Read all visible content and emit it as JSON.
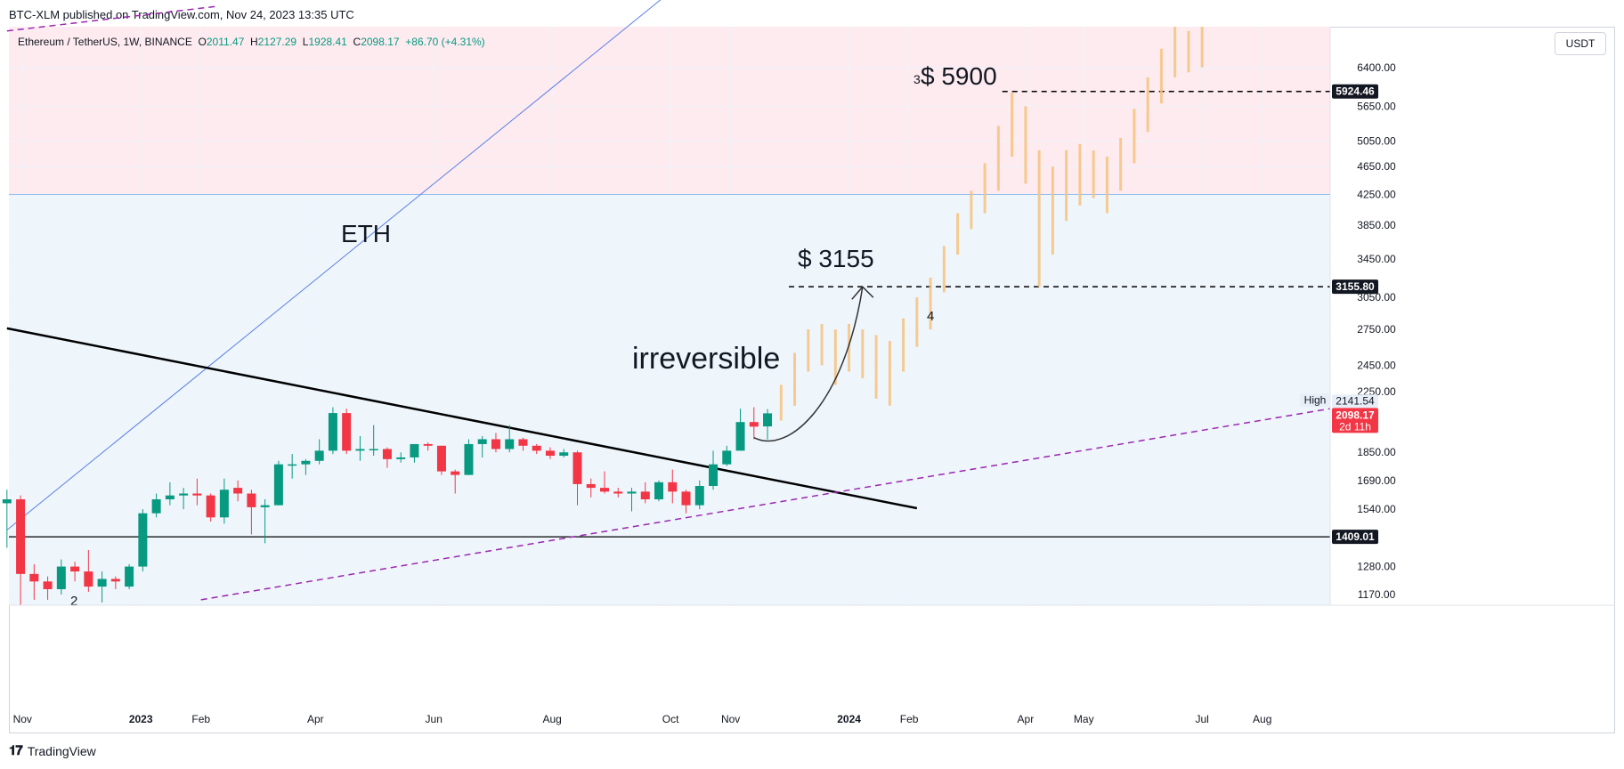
{
  "header": {
    "publisher": "BTC-XLM published on TradingView.com, Nov 24, 2023 13:35 UTC"
  },
  "legend": {
    "symbol": "Ethereum / TetherUS, 1W, BINANCE",
    "open_label": "O",
    "open": "2011.47",
    "high_label": "H",
    "high": "2127.29",
    "low_label": "L",
    "low": "1928.41",
    "close_label": "C",
    "close": "2098.17",
    "change": "+86.70 (+4.31%)"
  },
  "currency": "USDT",
  "footer": {
    "brand": "TradingView"
  },
  "annotations": {
    "eth": "ETH",
    "irreversible": "irreversible",
    "target1": "$ 3155",
    "target2": "$ 5900",
    "wave2": "2",
    "wave3": "3",
    "wave4": "4"
  },
  "price_labels": {
    "level_5924": "5924.46",
    "level_3155": "3155.80",
    "level_1409": "1409.01",
    "high_tag": "High",
    "high_value": "2141.54",
    "last_price": "2098.17",
    "countdown": "2d 11h"
  },
  "colors": {
    "bull": "#089981",
    "bear": "#f23645",
    "projection": "#f7c27f",
    "pink_zone": "#fdebef",
    "blue_zone": "#eef6fc",
    "trendline": "#000000",
    "diagonal": "#5b7fe8",
    "channel": "#9c27b0"
  },
  "chart_data": {
    "type": "candlestick",
    "title": "Ethereum / TetherUS, 1W, BINANCE",
    "y_scale": "log",
    "ylim": [
      1130,
      7300
    ],
    "y_ticks": [
      6400,
      5650,
      5050,
      4650,
      4250,
      3850,
      3450,
      3050,
      2750,
      2450,
      2250,
      1850,
      1690,
      1540,
      1280,
      1170
    ],
    "x_ticks": [
      "Nov",
      "2023",
      "Feb",
      "Apr",
      "Jun",
      "Aug",
      "Oct",
      "Nov",
      "2024",
      "Feb",
      "Apr",
      "May",
      "Jul",
      "Aug"
    ],
    "x_tick_dates": [
      "2022-11-01",
      "2023-01-01",
      "2023-02-01",
      "2023-04-01",
      "2023-06-01",
      "2023-08-01",
      "2023-10-01",
      "2023-11-01",
      "2024-01-01",
      "2024-02-01",
      "2024-04-01",
      "2024-05-01",
      "2024-07-01",
      "2024-08-01"
    ],
    "x_range": [
      "2022-10-25",
      "2024-09-05"
    ],
    "candles": [
      {
        "t": "2022-10-24",
        "o": 1570,
        "h": 1640,
        "l": 1360,
        "c": 1590
      },
      {
        "t": "2022-10-31",
        "o": 1590,
        "h": 1610,
        "l": 1080,
        "c": 1250
      },
      {
        "t": "2022-11-07",
        "o": 1250,
        "h": 1290,
        "l": 1150,
        "c": 1220
      },
      {
        "t": "2022-11-14",
        "o": 1220,
        "h": 1240,
        "l": 1150,
        "c": 1190
      },
      {
        "t": "2022-11-21",
        "o": 1190,
        "h": 1310,
        "l": 1170,
        "c": 1280
      },
      {
        "t": "2022-11-28",
        "o": 1280,
        "h": 1300,
        "l": 1220,
        "c": 1260
      },
      {
        "t": "2022-12-05",
        "o": 1260,
        "h": 1350,
        "l": 1180,
        "c": 1200
      },
      {
        "t": "2022-12-12",
        "o": 1200,
        "h": 1260,
        "l": 1140,
        "c": 1230
      },
      {
        "t": "2022-12-19",
        "o": 1230,
        "h": 1240,
        "l": 1190,
        "c": 1220
      },
      {
        "t": "2022-12-26",
        "o": 1200,
        "h": 1290,
        "l": 1190,
        "c": 1280
      },
      {
        "t": "2023-01-02",
        "o": 1280,
        "h": 1540,
        "l": 1260,
        "c": 1520
      },
      {
        "t": "2023-01-09",
        "o": 1520,
        "h": 1620,
        "l": 1500,
        "c": 1590
      },
      {
        "t": "2023-01-16",
        "o": 1590,
        "h": 1680,
        "l": 1560,
        "c": 1610
      },
      {
        "t": "2023-01-23",
        "o": 1610,
        "h": 1650,
        "l": 1540,
        "c": 1620
      },
      {
        "t": "2023-01-30",
        "o": 1620,
        "h": 1700,
        "l": 1560,
        "c": 1610
      },
      {
        "t": "2023-02-06",
        "o": 1610,
        "h": 1620,
        "l": 1480,
        "c": 1500
      },
      {
        "t": "2023-02-13",
        "o": 1500,
        "h": 1700,
        "l": 1470,
        "c": 1640
      },
      {
        "t": "2023-02-20",
        "o": 1650,
        "h": 1690,
        "l": 1580,
        "c": 1620
      },
      {
        "t": "2023-02-27",
        "o": 1620,
        "h": 1640,
        "l": 1420,
        "c": 1550
      },
      {
        "t": "2023-03-06",
        "o": 1550,
        "h": 1590,
        "l": 1380,
        "c": 1560
      },
      {
        "t": "2023-03-13",
        "o": 1560,
        "h": 1800,
        "l": 1560,
        "c": 1780
      },
      {
        "t": "2023-03-20",
        "o": 1780,
        "h": 1840,
        "l": 1700,
        "c": 1780
      },
      {
        "t": "2023-03-27",
        "o": 1780,
        "h": 1810,
        "l": 1720,
        "c": 1800
      },
      {
        "t": "2023-04-03",
        "o": 1800,
        "h": 1930,
        "l": 1780,
        "c": 1860
      },
      {
        "t": "2023-04-10",
        "o": 1860,
        "h": 2140,
        "l": 1840,
        "c": 2100
      },
      {
        "t": "2023-04-17",
        "o": 2100,
        "h": 2130,
        "l": 1840,
        "c": 1860
      },
      {
        "t": "2023-04-24",
        "o": 1860,
        "h": 1950,
        "l": 1800,
        "c": 1870
      },
      {
        "t": "2023-05-01",
        "o": 1870,
        "h": 2020,
        "l": 1830,
        "c": 1870
      },
      {
        "t": "2023-05-08",
        "o": 1870,
        "h": 1880,
        "l": 1760,
        "c": 1810
      },
      {
        "t": "2023-05-15",
        "o": 1810,
        "h": 1850,
        "l": 1790,
        "c": 1820
      },
      {
        "t": "2023-05-22",
        "o": 1820,
        "h": 1900,
        "l": 1790,
        "c": 1900
      },
      {
        "t": "2023-05-29",
        "o": 1900,
        "h": 1910,
        "l": 1860,
        "c": 1890
      },
      {
        "t": "2023-06-05",
        "o": 1890,
        "h": 1890,
        "l": 1720,
        "c": 1740
      },
      {
        "t": "2023-06-12",
        "o": 1740,
        "h": 1750,
        "l": 1620,
        "c": 1720
      },
      {
        "t": "2023-06-19",
        "o": 1720,
        "h": 1930,
        "l": 1720,
        "c": 1900
      },
      {
        "t": "2023-06-26",
        "o": 1900,
        "h": 1950,
        "l": 1820,
        "c": 1930
      },
      {
        "t": "2023-07-03",
        "o": 1930,
        "h": 1970,
        "l": 1850,
        "c": 1870
      },
      {
        "t": "2023-07-10",
        "o": 1870,
        "h": 2020,
        "l": 1850,
        "c": 1930
      },
      {
        "t": "2023-07-17",
        "o": 1930,
        "h": 1940,
        "l": 1860,
        "c": 1890
      },
      {
        "t": "2023-07-24",
        "o": 1890,
        "h": 1900,
        "l": 1840,
        "c": 1860
      },
      {
        "t": "2023-07-31",
        "o": 1860,
        "h": 1880,
        "l": 1810,
        "c": 1830
      },
      {
        "t": "2023-08-07",
        "o": 1830,
        "h": 1870,
        "l": 1820,
        "c": 1850
      },
      {
        "t": "2023-08-14",
        "o": 1850,
        "h": 1860,
        "l": 1560,
        "c": 1670
      },
      {
        "t": "2023-08-21",
        "o": 1670,
        "h": 1700,
        "l": 1600,
        "c": 1650
      },
      {
        "t": "2023-08-28",
        "o": 1650,
        "h": 1740,
        "l": 1620,
        "c": 1630
      },
      {
        "t": "2023-09-04",
        "o": 1630,
        "h": 1650,
        "l": 1600,
        "c": 1620
      },
      {
        "t": "2023-09-11",
        "o": 1620,
        "h": 1650,
        "l": 1530,
        "c": 1630
      },
      {
        "t": "2023-09-18",
        "o": 1630,
        "h": 1680,
        "l": 1570,
        "c": 1590
      },
      {
        "t": "2023-09-25",
        "o": 1590,
        "h": 1690,
        "l": 1580,
        "c": 1680
      },
      {
        "t": "2023-10-02",
        "o": 1680,
        "h": 1750,
        "l": 1570,
        "c": 1630
      },
      {
        "t": "2023-10-09",
        "o": 1630,
        "h": 1640,
        "l": 1520,
        "c": 1560
      },
      {
        "t": "2023-10-16",
        "o": 1560,
        "h": 1690,
        "l": 1540,
        "c": 1660
      },
      {
        "t": "2023-10-23",
        "o": 1660,
        "h": 1860,
        "l": 1640,
        "c": 1780
      },
      {
        "t": "2023-10-30",
        "o": 1780,
        "h": 1890,
        "l": 1770,
        "c": 1860
      },
      {
        "t": "2023-11-06",
        "o": 1860,
        "h": 2130,
        "l": 1860,
        "c": 2040
      },
      {
        "t": "2023-11-13",
        "o": 2040,
        "h": 2140,
        "l": 1930,
        "c": 2010
      },
      {
        "t": "2023-11-20",
        "o": 2011.47,
        "h": 2127.29,
        "l": 1928.41,
        "c": 2098.17
      }
    ],
    "projection": [
      {
        "t": "2023-11-27",
        "h": 2300,
        "l": 2050
      },
      {
        "t": "2023-12-04",
        "h": 2550,
        "l": 2150
      },
      {
        "t": "2023-12-11",
        "h": 2750,
        "l": 2400
      },
      {
        "t": "2023-12-18",
        "h": 2800,
        "l": 2450
      },
      {
        "t": "2023-12-25",
        "h": 2750,
        "l": 2300
      },
      {
        "t": "2024-01-01",
        "h": 2800,
        "l": 2400
      },
      {
        "t": "2024-01-08",
        "h": 2750,
        "l": 2350
      },
      {
        "t": "2024-01-15",
        "h": 2700,
        "l": 2200
      },
      {
        "t": "2024-01-22",
        "h": 2650,
        "l": 2150
      },
      {
        "t": "2024-01-29",
        "h": 2850,
        "l": 2400
      },
      {
        "t": "2024-02-05",
        "h": 3050,
        "l": 2600
      },
      {
        "t": "2024-02-12",
        "h": 3250,
        "l": 2750
      },
      {
        "t": "2024-02-19",
        "h": 3600,
        "l": 3100
      },
      {
        "t": "2024-02-26",
        "h": 4000,
        "l": 3500
      },
      {
        "t": "2024-03-04",
        "h": 4300,
        "l": 3800
      },
      {
        "t": "2024-03-11",
        "h": 4700,
        "l": 4000
      },
      {
        "t": "2024-03-18",
        "h": 5300,
        "l": 4300
      },
      {
        "t": "2024-03-25",
        "h": 5900,
        "l": 4800
      },
      {
        "t": "2024-04-01",
        "h": 5650,
        "l": 4400
      },
      {
        "t": "2024-04-08",
        "h": 4900,
        "l": 3155
      },
      {
        "t": "2024-04-15",
        "h": 4650,
        "l": 3500
      },
      {
        "t": "2024-04-22",
        "h": 4900,
        "l": 3900
      },
      {
        "t": "2024-04-29",
        "h": 5000,
        "l": 4100
      },
      {
        "t": "2024-05-06",
        "h": 4900,
        "l": 4200
      },
      {
        "t": "2024-05-13",
        "h": 4800,
        "l": 4000
      },
      {
        "t": "2024-05-20",
        "h": 5100,
        "l": 4300
      },
      {
        "t": "2024-05-27",
        "h": 5600,
        "l": 4700
      },
      {
        "t": "2024-06-03",
        "h": 6200,
        "l": 5200
      },
      {
        "t": "2024-06-10",
        "h": 6800,
        "l": 5700
      },
      {
        "t": "2024-06-17",
        "h": 7300,
        "l": 6200
      },
      {
        "t": "2024-06-24",
        "h": 7200,
        "l": 6300
      },
      {
        "t": "2024-07-01",
        "h": 7300,
        "l": 6400
      }
    ],
    "levels": [
      {
        "name": "level-5924",
        "value": 5924.46,
        "style": "dashed"
      },
      {
        "name": "level-3155",
        "value": 3155.8,
        "style": "dashed"
      },
      {
        "name": "level-1409",
        "value": 1409.01,
        "style": "solid"
      },
      {
        "name": "zone-boundary",
        "value": 4250,
        "style": "solid"
      }
    ],
    "trendline": {
      "start": {
        "t": "2022-10-24",
        "v": 2760
      },
      "end": {
        "t": "2024-02-05",
        "v": 1545
      }
    },
    "diagonal": {
      "start": {
        "t": "2022-10-24",
        "v": 1440
      },
      "end": {
        "t": "2023-10-20",
        "v": 9000
      }
    },
    "channel_lower": {
      "start": {
        "t": "2023-02-01",
        "v": 1150
      },
      "end": {
        "t": "2024-09-05",
        "v": 2130
      }
    },
    "channel_upper": {
      "start": {
        "t": "2022-10-24",
        "v": 7200
      },
      "end": {
        "t": "2023-02-10",
        "v": 7800
      }
    },
    "arrow": {
      "from": {
        "t": "2023-11-13",
        "v": 1940
      },
      "to": {
        "t": "2024-01-08",
        "v": 3155
      }
    },
    "high": 2141.54,
    "last": 2098.17
  }
}
